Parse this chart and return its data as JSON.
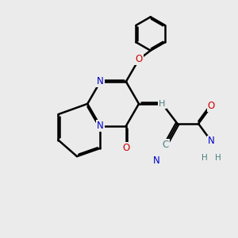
{
  "bg_color": "#ebebeb",
  "bond_color": "#000000",
  "bond_width": 1.8,
  "dbo": 0.055,
  "atom_colors": {
    "N": "#0000cc",
    "O": "#cc0000",
    "C": "#4a8080",
    "H": "#4a8080"
  }
}
